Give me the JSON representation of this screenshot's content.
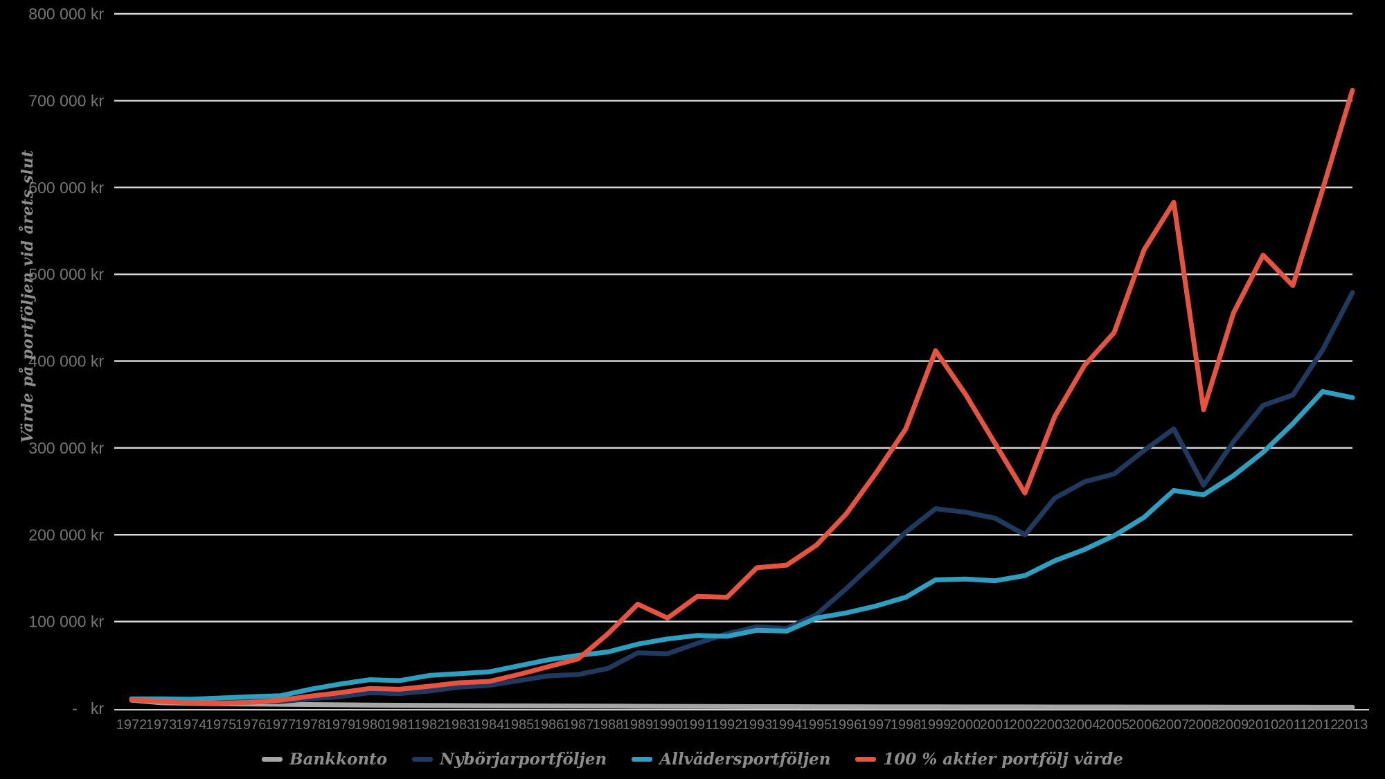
{
  "chart_data": {
    "type": "line",
    "title": "",
    "ylabel": "Värde på portföljen vid årets slut",
    "xlabel": "",
    "ylim": [
      0,
      800000
    ],
    "grid": true,
    "legend_position": "bottom",
    "background": "#000000",
    "gridline_color": "#d6d6d6",
    "axis_line_color": "#cfcfcf",
    "axis_text_color": "#767676",
    "y_ticks": [
      "-   kr",
      "100 000 kr",
      "200 000 kr",
      "300 000 kr",
      "400 000 kr",
      "500 000 kr",
      "600 000 kr",
      "700 000 kr",
      "800 000 kr"
    ],
    "categories": [
      "1972",
      "1973",
      "1974",
      "1975",
      "1976",
      "1977",
      "1978",
      "1979",
      "1980",
      "1981",
      "1982",
      "1983",
      "1984",
      "1985",
      "1986",
      "1987",
      "1988",
      "1989",
      "1990",
      "1991",
      "1992",
      "1993",
      "1994",
      "1995",
      "1996",
      "1997",
      "1998",
      "1999",
      "2000",
      "2001",
      "2002",
      "2003",
      "2004",
      "2005",
      "2006",
      "2007",
      "2008",
      "2009",
      "2010",
      "2011",
      "2012",
      "2013"
    ],
    "series": [
      {
        "id": "bankkonto",
        "name": "Bankkonto",
        "color": "#a6a6a6",
        "values": [
          9500,
          6500,
          5800,
          5300,
          5000,
          4700,
          4400,
          4100,
          3800,
          3600,
          3400,
          3200,
          3000,
          2900,
          2800,
          2700,
          2600,
          2400,
          2300,
          2200,
          2100,
          2000,
          2000,
          1900,
          1900,
          1800,
          1800,
          1800,
          1700,
          1700,
          1700,
          1600,
          1600,
          1600,
          1500,
          1500,
          1500,
          1400,
          1400,
          1400,
          1300,
          1300
        ]
      },
      {
        "id": "nyborjarportfoljen",
        "name": "Nybörjarportföljen",
        "color": "#1f3a5e",
        "values": [
          10000,
          9000,
          7000,
          7300,
          8000,
          7800,
          11000,
          13500,
          18000,
          17000,
          20000,
          24500,
          26500,
          32000,
          37500,
          39000,
          46000,
          64000,
          63000,
          75000,
          86000,
          94000,
          92000,
          108000,
          138000,
          170000,
          203000,
          230000,
          226000,
          219000,
          200000,
          242000,
          261000,
          270000,
          297000,
          322000,
          257000,
          307000,
          349000,
          361000,
          413000,
          479000
        ]
      },
      {
        "id": "allvadersportfoljen",
        "name": "Allvädersportföljen",
        "color": "#2e9fbe",
        "values": [
          11000,
          11000,
          10500,
          12000,
          13500,
          14500,
          22000,
          28000,
          33000,
          32000,
          38000,
          40000,
          42000,
          49000,
          56000,
          61000,
          65000,
          74000,
          80000,
          84000,
          83000,
          90000,
          89000,
          104000,
          110000,
          118000,
          128000,
          148000,
          149000,
          147000,
          153000,
          170000,
          183000,
          199000,
          220000,
          251000,
          246000,
          268000,
          295000,
          328000,
          365000,
          358000
        ]
      },
      {
        "id": "aktier",
        "name": "100 % aktier portfölj värde",
        "color": "#e6543f",
        "values": [
          10000,
          8000,
          6400,
          5800,
          7000,
          9500,
          14000,
          18000,
          23000,
          22000,
          25500,
          29500,
          31000,
          39000,
          48000,
          57000,
          86000,
          120000,
          104000,
          129000,
          128000,
          162000,
          165000,
          188000,
          224000,
          271000,
          322000,
          412000,
          362000,
          305000,
          248000,
          336000,
          395000,
          433000,
          528000,
          583000,
          344000,
          455000,
          522000,
          487000,
          598000,
          712000
        ]
      }
    ]
  }
}
